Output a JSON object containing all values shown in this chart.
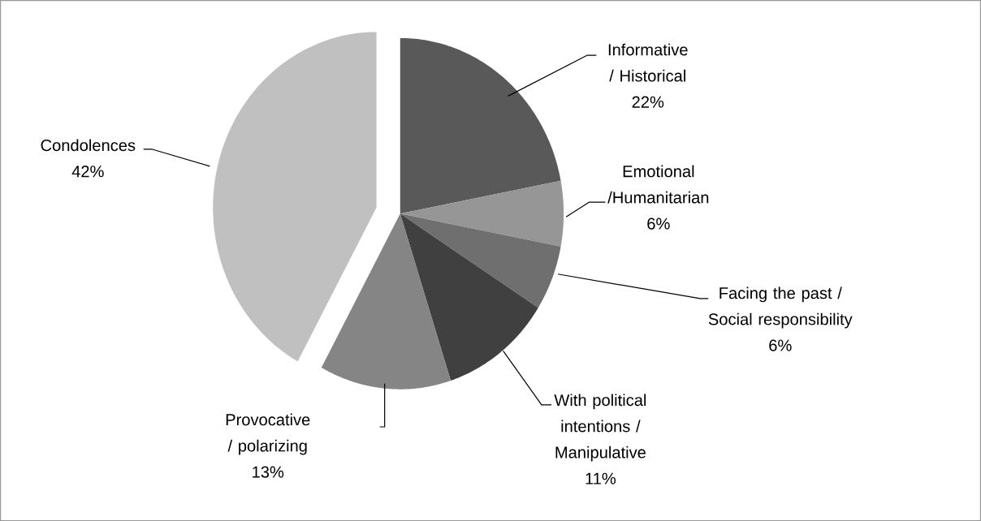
{
  "chart_data": {
    "type": "pie",
    "categories": [
      "Informative / Historical",
      "Emotional /Humanitarian",
      "Facing the past / Social responsibility",
      "With political intentions / Manipulative",
      "Provocative / polarizing",
      "Condolences"
    ],
    "values": [
      22,
      6,
      6,
      11,
      13,
      42
    ],
    "value_labels": [
      "22%",
      "6%",
      "6%",
      "11%",
      "13%",
      "42%"
    ],
    "colors": [
      "#595959",
      "#969696",
      "#6f6f6f",
      "#404040",
      "#858585",
      "#c0c0c0"
    ]
  }
}
